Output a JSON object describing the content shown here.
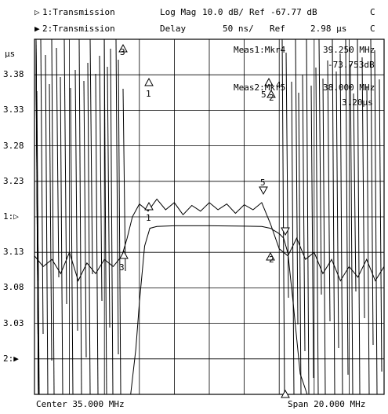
{
  "header": {
    "ch1": {
      "symbol": "▷",
      "label": "1:Transmission",
      "format": "Log Mag",
      "scale": "10.0 dB/",
      "ref_label": "Ref",
      "ref_value": "-67.77 dB",
      "coupling": "C"
    },
    "ch2": {
      "symbol": "▶",
      "label": "2:Transmission",
      "format": "Delay",
      "scale": "50 ns/",
      "ref_label": "Ref",
      "ref_value": "2.98 µs",
      "coupling": "C"
    }
  },
  "markers": {
    "m1": {
      "label": "Meas1:Mkr4",
      "value1": "39.250 MHz",
      "value2": "-73.753dB"
    },
    "m2": {
      "label": "Meas2:Mkr5",
      "value1": "38.000 MHz",
      "value2": "3.20µs"
    }
  },
  "footer": {
    "center": "Center 35.000 MHz",
    "span": "Span 20.000 MHz"
  },
  "chart_data": {
    "type": "line",
    "x_range_mhz": [
      25,
      45
    ],
    "y_unit": "µs",
    "y_ticks": [
      "3.38",
      "3.33",
      "3.28",
      "3.23",
      "1:▷",
      "3.13",
      "3.08",
      "3.03",
      "2:▶"
    ],
    "grid": true,
    "series": [
      {
        "name": "1:Transmission",
        "x": [
          25,
          26.5,
          27.5,
          28.5,
          29.5,
          30.0,
          30.5,
          30.8,
          31.0,
          31.3,
          31.6,
          32.0,
          33.0,
          35.0,
          37.0,
          38.0,
          38.5,
          39.0,
          39.25,
          39.5,
          39.8,
          40.2,
          40.6,
          41.0,
          42.0,
          43.0,
          44.0,
          45.0
        ],
        "y": [
          -130,
          -128,
          -132,
          -129,
          -131,
          -128,
          -118,
          -105,
          -92,
          -76,
          -71,
          -70.5,
          -70.3,
          -70.3,
          -70.4,
          -70.5,
          -71,
          -72.5,
          -73.75,
          -78,
          -92,
          -112,
          -126,
          -129,
          -131,
          -129,
          -130,
          -131
        ]
      },
      {
        "name": "2:Transmission",
        "x": [
          25,
          25.5,
          26,
          26.5,
          27,
          27.5,
          28,
          28.5,
          29,
          29.5,
          30,
          30.3,
          30.6,
          31.0,
          31.5,
          32,
          32.5,
          33,
          33.5,
          34,
          34.5,
          35,
          35.5,
          36,
          36.5,
          37,
          37.5,
          38.0,
          38.5,
          39.0,
          39.5,
          40.0,
          40.5,
          41,
          41.5,
          42,
          42.5,
          43,
          43.5,
          44,
          44.5,
          45
        ],
        "y": [
          3.125,
          3.11,
          3.12,
          3.1,
          3.13,
          3.09,
          3.115,
          3.1,
          3.12,
          3.11,
          3.125,
          3.15,
          3.18,
          3.198,
          3.188,
          3.205,
          3.19,
          3.2,
          3.183,
          3.196,
          3.188,
          3.2,
          3.19,
          3.198,
          3.185,
          3.197,
          3.19,
          3.2,
          3.17,
          3.135,
          3.125,
          3.15,
          3.12,
          3.13,
          3.1,
          3.12,
          3.09,
          3.11,
          3.095,
          3.12,
          3.09,
          3.11
        ]
      }
    ],
    "marker_labels": [
      "1",
      "1",
      "2",
      "2",
      "3",
      "3",
      "4",
      "5",
      "5",
      "5"
    ]
  }
}
